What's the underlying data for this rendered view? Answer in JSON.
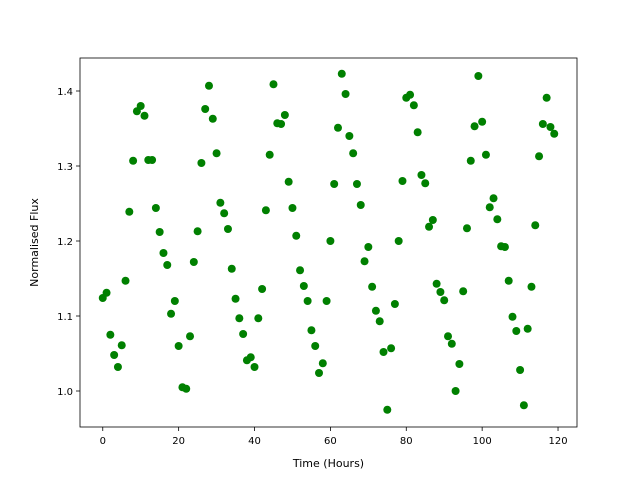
{
  "chart_data": {
    "type": "scatter",
    "x_label": "Time (Hours)",
    "y_label": "Normalised Flux",
    "color": "#008000",
    "xlim": [
      -6,
      125
    ],
    "xticks": [
      0,
      20,
      40,
      60,
      80,
      100,
      120
    ],
    "ylim": [
      0.952,
      1.444
    ],
    "yticks": [
      {
        "value": 1,
        "label": "1.0"
      },
      1.1,
      1.2,
      1.3,
      1.4
    ],
    "x": [
      0,
      1,
      2,
      3,
      4,
      5,
      6,
      7,
      8,
      9,
      10,
      11,
      12,
      13,
      14,
      15,
      16,
      17,
      18,
      19,
      20,
      21,
      22,
      23,
      24,
      25,
      26,
      27,
      28,
      29,
      30,
      31,
      32,
      33,
      34,
      35,
      36,
      37,
      38,
      39,
      40,
      41,
      42,
      43,
      44,
      45,
      46,
      47,
      48,
      49,
      50,
      51,
      52,
      53,
      54,
      55,
      56,
      57,
      58,
      59,
      60,
      61,
      62,
      63,
      64,
      65,
      66,
      67,
      68,
      69,
      70,
      71,
      72,
      73,
      74,
      75,
      76,
      77,
      78,
      79,
      80,
      81,
      82,
      83,
      84,
      85,
      86,
      87,
      88,
      89,
      90,
      91,
      92,
      93,
      94,
      95,
      96,
      97,
      98,
      99,
      100,
      101,
      102,
      103,
      104,
      105,
      106,
      107,
      108,
      109,
      110,
      111,
      112,
      113,
      114,
      115,
      116,
      117,
      118,
      119
    ],
    "values": [
      1.124,
      1.131,
      1.075,
      1.048,
      1.032,
      1.061,
      1.147,
      1.239,
      1.307,
      1.373,
      1.38,
      1.367,
      1.308,
      1.308,
      1.244,
      1.212,
      1.184,
      1.168,
      1.103,
      1.12,
      1.06,
      1.005,
      1.003,
      1.073,
      1.172,
      1.213,
      1.304,
      1.376,
      1.407,
      1.363,
      1.317,
      1.251,
      1.237,
      1.216,
      1.163,
      1.123,
      1.097,
      1.076,
      1.041,
      1.045,
      1.032,
      1.097,
      1.136,
      1.241,
      1.315,
      1.409,
      1.357,
      1.356,
      1.368,
      1.279,
      1.244,
      1.207,
      1.161,
      1.14,
      1.12,
      1.081,
      1.06,
      1.024,
      1.037,
      1.12,
      1.2,
      1.276,
      1.351,
      1.423,
      1.396,
      1.34,
      1.317,
      1.276,
      1.248,
      1.173,
      1.192,
      1.139,
      1.107,
      1.093,
      1.052,
      0.975,
      1.057,
      1.116,
      1.2,
      1.28,
      1.391,
      1.395,
      1.381,
      1.345,
      1.288,
      1.277,
      1.219,
      1.228,
      1.143,
      1.132,
      1.121,
      1.073,
      1.063,
      1.0,
      1.036,
      1.133,
      1.217,
      1.307,
      1.353,
      1.42,
      1.359,
      1.315,
      1.245,
      1.257,
      1.229,
      1.193,
      1.192,
      1.147,
      1.099,
      1.08,
      1.028,
      0.981,
      1.083,
      1.139,
      1.221,
      1.313,
      1.356,
      1.391,
      1.352,
      1.343
    ]
  }
}
